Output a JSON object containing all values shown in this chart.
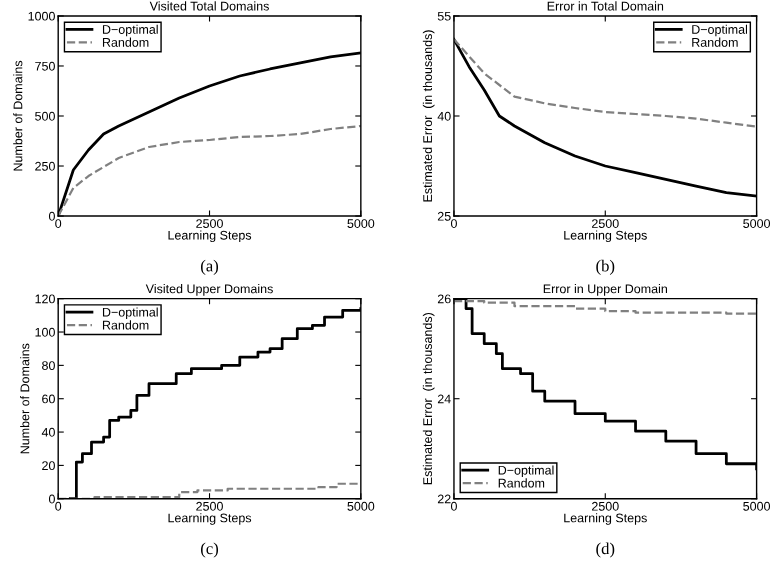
{
  "chart_data": [
    {
      "type": "line",
      "title": "Visited Total Domains",
      "xlabel": "Learning Steps",
      "ylabel": "Number of Domains",
      "annotations": [
        "(a)"
      ],
      "xlim": [
        0,
        5000
      ],
      "xticks": [
        0,
        2500,
        5000
      ],
      "ylim": [
        0,
        1000
      ],
      "yticks": [
        0,
        250,
        500,
        750,
        1000
      ],
      "legend": "top left",
      "series": [
        {
          "name": "D−optimal",
          "color": "#000000",
          "line_style": "solid",
          "x": [
            0,
            250,
            500,
            750,
            1000,
            1500,
            2000,
            2500,
            3000,
            3500,
            4000,
            4500,
            5000
          ],
          "values": [
            0,
            230,
            330,
            410,
            450,
            520,
            590,
            650,
            700,
            735,
            765,
            795,
            815
          ]
        },
        {
          "name": "Random",
          "color": "#808080",
          "line_style": "dashed",
          "x": [
            0,
            250,
            500,
            1000,
            1500,
            2000,
            2500,
            3000,
            3500,
            4000,
            4500,
            5000
          ],
          "values": [
            0,
            140,
            200,
            290,
            345,
            370,
            380,
            395,
            400,
            410,
            435,
            450
          ]
        }
      ]
    },
    {
      "type": "line",
      "title": "Error in Total Domain",
      "xlabel": "Learning Steps",
      "ylabel": "Estimated Error  (in thousands)",
      "annotations": [
        "(b)"
      ],
      "xlim": [
        0,
        5000
      ],
      "xticks": [
        0,
        2500,
        5000
      ],
      "ylim": [
        25,
        55
      ],
      "yticks": [
        25,
        40,
        55
      ],
      "legend": "top right",
      "series": [
        {
          "name": "D−optimal",
          "color": "#000000",
          "line_style": "solid",
          "x": [
            0,
            250,
            500,
            750,
            1000,
            1500,
            2000,
            2500,
            3000,
            3500,
            4000,
            4500,
            5000
          ],
          "values": [
            51.5,
            47.4,
            43.9,
            40,
            38.5,
            36,
            34,
            32.5,
            31.5,
            30.5,
            29.5,
            28.5,
            28
          ]
        },
        {
          "name": "Random",
          "color": "#808080",
          "line_style": "dashed",
          "x": [
            0,
            500,
            1000,
            1500,
            2000,
            2500,
            3000,
            3500,
            4000,
            4500,
            5000
          ],
          "values": [
            51.5,
            46.4,
            42.9,
            41.9,
            41.2,
            40.6,
            40.3,
            40,
            39.6,
            39,
            38.4
          ]
        }
      ]
    },
    {
      "type": "step",
      "title": "Visited Upper Domains",
      "xlabel": "Learning Steps",
      "ylabel": "Number of Domains",
      "annotations": [
        "(c)"
      ],
      "xlim": [
        0,
        5000
      ],
      "xticks": [
        0,
        2500,
        5000
      ],
      "ylim": [
        0,
        120
      ],
      "yticks": [
        0,
        20,
        40,
        60,
        80,
        100,
        120
      ],
      "legend": "top left",
      "series": [
        {
          "name": "D−optimal",
          "color": "#000000",
          "line_style": "solid",
          "x": [
            200,
            300,
            400,
            550,
            750,
            850,
            1000,
            1200,
            1300,
            1500,
            1950,
            2200,
            2700,
            3000,
            3300,
            3500,
            3700,
            3950,
            4200,
            4400,
            4700,
            5000
          ],
          "values": [
            0,
            22,
            27,
            34,
            37,
            47,
            49,
            53,
            62,
            69,
            75,
            78,
            80,
            85,
            88,
            90,
            96,
            102,
            104,
            109,
            113,
            114
          ]
        },
        {
          "name": "Random",
          "color": "#808080",
          "line_style": "dashed",
          "x": [
            0,
            600,
            2000,
            2300,
            2800,
            4300,
            4600,
            5000
          ],
          "values": [
            0,
            1,
            4,
            5,
            6,
            7,
            9,
            9
          ]
        }
      ]
    },
    {
      "type": "step",
      "title": "Error in Upper Domain",
      "xlabel": "Learning Steps",
      "ylabel": "Estimated Error  (in thousands)",
      "annotations": [
        "(d)"
      ],
      "xlim": [
        0,
        5000
      ],
      "xticks": [
        0,
        2500,
        5000
      ],
      "ylim": [
        22,
        26
      ],
      "yticks": [
        22,
        24,
        26
      ],
      "legend": "bottom left",
      "series": [
        {
          "name": "D−optimal",
          "color": "#000000",
          "line_style": "solid",
          "x": [
            0,
            200,
            300,
            500,
            700,
            800,
            1100,
            1300,
            1500,
            2000,
            2500,
            3000,
            3500,
            4000,
            4500,
            5000
          ],
          "values": [
            26,
            25.8,
            25.3,
            25.1,
            24.9,
            24.6,
            24.5,
            24.15,
            23.95,
            23.7,
            23.55,
            23.35,
            23.15,
            22.9,
            22.7,
            22.6
          ]
        },
        {
          "name": "Random",
          "color": "#808080",
          "line_style": "dashed",
          "x": [
            0,
            500,
            1000,
            2000,
            2500,
            3000,
            4500,
            5000
          ],
          "values": [
            25.95,
            25.92,
            25.85,
            25.8,
            25.75,
            25.72,
            25.7,
            25.65
          ]
        }
      ]
    }
  ]
}
